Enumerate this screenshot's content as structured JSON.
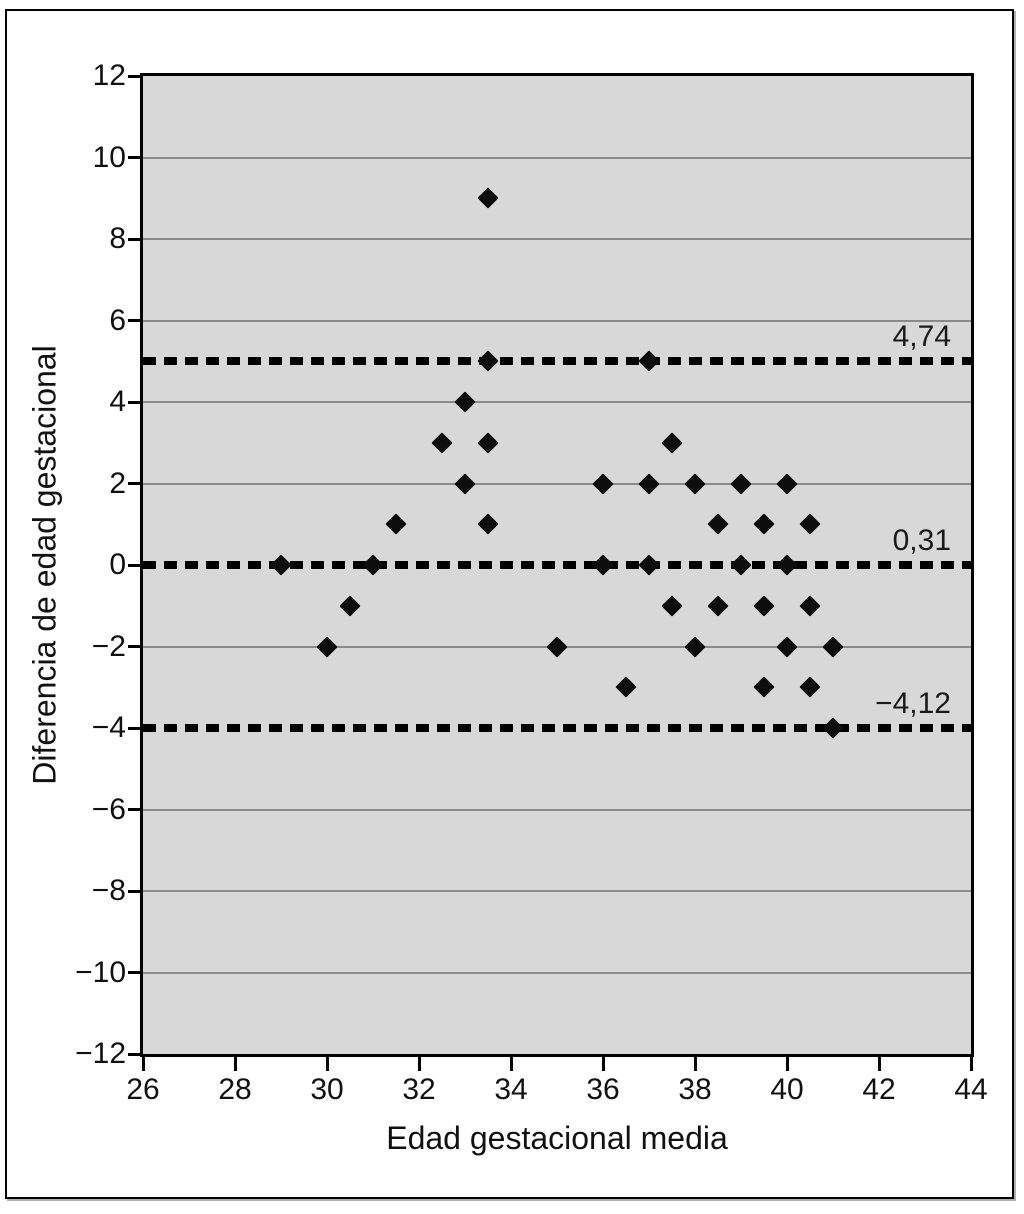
{
  "figure": {
    "y_axis_title": "Diferencia de edad gestacional",
    "x_axis_title": "Edad gestacional media",
    "y_ticks": [
      {
        "v": 12,
        "label": "12"
      },
      {
        "v": 10,
        "label": "10"
      },
      {
        "v": 8,
        "label": "8"
      },
      {
        "v": 6,
        "label": "6"
      },
      {
        "v": 4,
        "label": "4"
      },
      {
        "v": 2,
        "label": "2"
      },
      {
        "v": 0,
        "label": "0"
      },
      {
        "v": -2,
        "label": "−2"
      },
      {
        "v": -4,
        "label": "−4"
      },
      {
        "v": -6,
        "label": "−6"
      },
      {
        "v": -8,
        "label": "−8"
      },
      {
        "v": -10,
        "label": "−10"
      },
      {
        "v": -12,
        "label": "−12"
      }
    ],
    "x_ticks": [
      {
        "v": 26,
        "label": "26"
      },
      {
        "v": 28,
        "label": "28"
      },
      {
        "v": 30,
        "label": "30"
      },
      {
        "v": 32,
        "label": "32"
      },
      {
        "v": 34,
        "label": "34"
      },
      {
        "v": 36,
        "label": "36"
      },
      {
        "v": 38,
        "label": "38"
      },
      {
        "v": 40,
        "label": "40"
      },
      {
        "v": 42,
        "label": "42"
      },
      {
        "v": 44,
        "label": "44"
      }
    ],
    "gridline_values": [
      10,
      8,
      6,
      4,
      2,
      -2,
      -6,
      -8,
      -10
    ],
    "colors": {
      "plot_bg": "#d8d8d8",
      "gridline": "#8a8a8a",
      "marker": "#0d0d0d",
      "reference_line": "#000000"
    }
  },
  "chart_data": {
    "type": "scatter",
    "title": "",
    "xlabel": "Edad gestacional media",
    "ylabel": "Diferencia de edad gestacional",
    "xlim": [
      26,
      44
    ],
    "ylim": [
      -12,
      12
    ],
    "x_tick_step": 2,
    "y_tick_step": 2,
    "grid": "horizontal",
    "marker": "diamond",
    "legend": "none",
    "reference_lines": [
      {
        "label": "4,74",
        "value": 4.74,
        "drawn_at": 5,
        "style": "dashed"
      },
      {
        "label": "0,31",
        "value": 0.31,
        "drawn_at": 0,
        "style": "dashed"
      },
      {
        "label": "−4,12",
        "value": -4.12,
        "drawn_at": -4,
        "style": "dashed"
      }
    ],
    "points": [
      [
        33.5,
        9
      ],
      [
        33.5,
        5
      ],
      [
        37,
        5
      ],
      [
        33,
        4
      ],
      [
        32.5,
        3
      ],
      [
        33.5,
        3
      ],
      [
        37.5,
        3
      ],
      [
        33,
        2
      ],
      [
        36,
        2
      ],
      [
        37,
        2
      ],
      [
        38,
        2
      ],
      [
        39,
        2
      ],
      [
        40,
        2
      ],
      [
        31.5,
        1
      ],
      [
        33.5,
        1
      ],
      [
        38.5,
        1
      ],
      [
        39.5,
        1
      ],
      [
        40.5,
        1
      ],
      [
        29,
        0
      ],
      [
        31,
        0
      ],
      [
        36,
        0
      ],
      [
        37,
        0
      ],
      [
        39,
        0
      ],
      [
        40,
        0
      ],
      [
        30.5,
        -1
      ],
      [
        37.5,
        -1
      ],
      [
        38.5,
        -1
      ],
      [
        39.5,
        -1
      ],
      [
        40.5,
        -1
      ],
      [
        30,
        -2
      ],
      [
        35,
        -2
      ],
      [
        38,
        -2
      ],
      [
        40,
        -2
      ],
      [
        41,
        -2
      ],
      [
        36.5,
        -3
      ],
      [
        39.5,
        -3
      ],
      [
        40.5,
        -3
      ],
      [
        41,
        -4
      ]
    ]
  }
}
